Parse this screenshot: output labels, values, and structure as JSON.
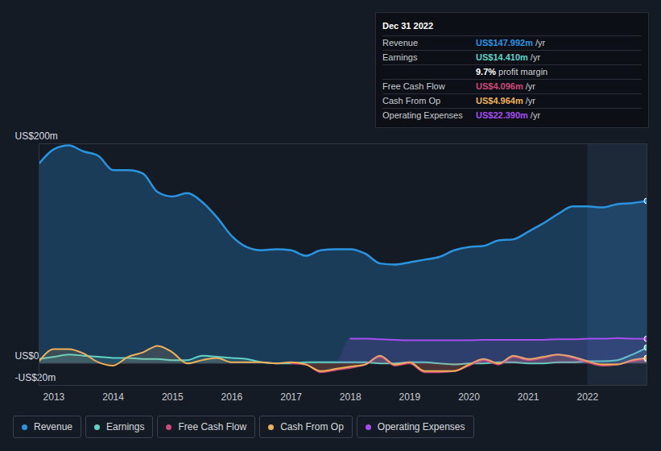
{
  "chart_data": {
    "type": "line",
    "x": [
      2012.75,
      2013.0,
      2013.25,
      2013.5,
      2013.75,
      2014.0,
      2014.25,
      2014.5,
      2014.75,
      2015.0,
      2015.25,
      2015.5,
      2015.75,
      2016.0,
      2016.25,
      2016.5,
      2016.75,
      2017.0,
      2017.25,
      2017.5,
      2017.75,
      2018.0,
      2018.25,
      2018.5,
      2018.75,
      2019.0,
      2019.25,
      2019.5,
      2019.75,
      2020.0,
      2020.25,
      2020.5,
      2020.75,
      2021.0,
      2021.25,
      2021.5,
      2021.75,
      2022.0,
      2022.25,
      2022.5,
      2022.75,
      2023.0
    ],
    "xlim": [
      2012.75,
      2023.0
    ],
    "xticks": [
      2013,
      2014,
      2015,
      2016,
      2017,
      2018,
      2019,
      2020,
      2021,
      2022
    ],
    "ylim": [
      -20,
      200
    ],
    "yticks": [
      {
        "value": 200,
        "label": "US$200m"
      },
      {
        "value": 0,
        "label": "US$0"
      },
      {
        "value": -20,
        "label": "-US$20m"
      }
    ],
    "grid": true,
    "legend": "bottom",
    "series": [
      {
        "name": "Revenue",
        "color": "#2a94e0",
        "values": [
          182,
          195,
          198.5,
          193,
          189,
          176,
          176,
          173,
          156,
          152,
          155,
          147,
          133,
          116,
          106,
          103,
          104,
          103,
          98,
          103,
          104,
          104,
          100,
          91,
          90,
          92,
          94.5,
          97,
          103,
          106,
          107,
          112,
          113,
          120,
          127.5,
          136,
          143,
          143,
          142,
          145,
          146,
          147.992
        ]
      },
      {
        "name": "Earnings",
        "color": "#5fd3c5",
        "values": [
          4,
          6,
          8,
          7,
          6,
          5,
          5,
          4,
          4,
          3,
          3,
          7,
          6,
          5,
          4,
          1,
          0,
          0,
          1,
          1,
          1,
          1,
          1,
          0,
          0,
          1,
          1,
          0,
          -1,
          0,
          0,
          1,
          1,
          0,
          0,
          1,
          1,
          2,
          2,
          3,
          8,
          14.41
        ]
      },
      {
        "name": "Free Cash Flow",
        "color": "#d0487a",
        "values": [
          null,
          null,
          null,
          null,
          null,
          null,
          null,
          null,
          null,
          null,
          null,
          null,
          null,
          null,
          null,
          null,
          null,
          0,
          -1,
          -8,
          -6,
          -4,
          -1,
          6,
          -2,
          0,
          -8,
          -8,
          -7,
          -2,
          3,
          -1,
          6,
          3,
          5,
          8,
          5,
          1,
          -2,
          -1,
          2,
          4.096
        ]
      },
      {
        "name": "Cash From Op",
        "color": "#eeb15a",
        "values": [
          2,
          13,
          13,
          9,
          1,
          -2,
          6,
          10,
          16,
          10,
          0,
          3,
          5,
          1,
          1,
          1,
          0,
          1,
          -1,
          -7,
          -5,
          -3,
          -1,
          7,
          -1,
          1,
          -7,
          -7,
          -7,
          -1,
          4,
          0,
          7,
          4,
          6,
          8,
          6,
          2,
          -1,
          -1,
          3,
          4.964
        ]
      },
      {
        "name": "Operating Expenses",
        "color": "#a64ef0",
        "values": [
          null,
          null,
          null,
          null,
          null,
          null,
          null,
          null,
          null,
          null,
          null,
          null,
          null,
          null,
          null,
          null,
          null,
          null,
          null,
          null,
          null,
          22.5,
          22.5,
          22,
          21.5,
          21,
          21,
          21,
          21,
          21,
          21.5,
          21.5,
          21.5,
          21.5,
          21.5,
          22,
          22,
          22.5,
          22.5,
          23,
          22.5,
          22.39
        ]
      }
    ],
    "annotation": {
      "title": "Dec 31 2022",
      "rows": [
        {
          "label": "Revenue",
          "value": "US$147.992m",
          "unit": "/yr"
        },
        {
          "label": "Earnings",
          "value": "US$14.410m",
          "unit": "/yr"
        },
        {
          "value": "9.7%",
          "unit": "profit margin"
        },
        {
          "label": "Free Cash Flow",
          "value": "US$4.096m",
          "unit": "/yr"
        },
        {
          "label": "Cash From Op",
          "value": "US$4.964m",
          "unit": "/yr"
        },
        {
          "label": "Operating Expenses",
          "value": "US$22.390m",
          "unit": "/yr"
        }
      ]
    }
  }
}
